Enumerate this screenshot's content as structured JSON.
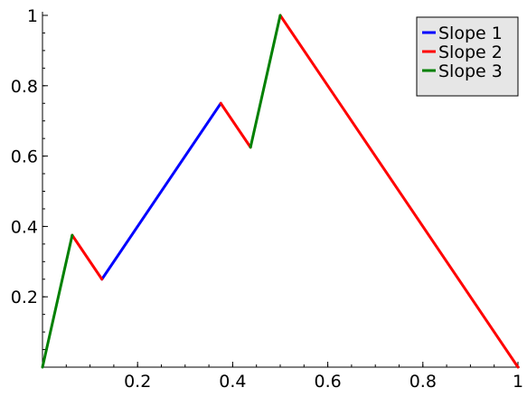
{
  "chart_data": {
    "type": "line",
    "title": "",
    "xlabel": "",
    "ylabel": "",
    "xlim": [
      0,
      1
    ],
    "ylim": [
      0,
      1
    ],
    "grid": false,
    "legend_placement": "top-right",
    "x_ticks": [
      {
        "value": 0.2,
        "label": "0.2"
      },
      {
        "value": 0.4,
        "label": "0.4"
      },
      {
        "value": 0.6,
        "label": "0.6"
      },
      {
        "value": 0.8,
        "label": "0.8"
      },
      {
        "value": 1.0,
        "label": "1"
      }
    ],
    "y_ticks": [
      {
        "value": 0.2,
        "label": "0.2"
      },
      {
        "value": 0.4,
        "label": "0.4"
      },
      {
        "value": 0.6,
        "label": "0.6"
      },
      {
        "value": 0.8,
        "label": "0.8"
      },
      {
        "value": 1.0,
        "label": "1"
      }
    ],
    "series": [
      {
        "name": "Slope 1",
        "color": "#0000ff",
        "segments": [
          [
            [
              0.125,
              0.25
            ],
            [
              0.375,
              0.75
            ]
          ]
        ]
      },
      {
        "name": "Slope 2",
        "color": "#ff0000",
        "segments": [
          [
            [
              0.0625,
              0.375
            ],
            [
              0.125,
              0.25
            ]
          ],
          [
            [
              0.375,
              0.75
            ],
            [
              0.4375,
              0.625
            ]
          ],
          [
            [
              0.5,
              1.0
            ],
            [
              1.0,
              0.0
            ]
          ]
        ]
      },
      {
        "name": "Slope 3",
        "color": "#008000",
        "segments": [
          [
            [
              0.0,
              0.0
            ],
            [
              0.0625,
              0.375
            ]
          ],
          [
            [
              0.4375,
              0.625
            ],
            [
              0.5,
              1.0
            ]
          ]
        ]
      }
    ]
  }
}
